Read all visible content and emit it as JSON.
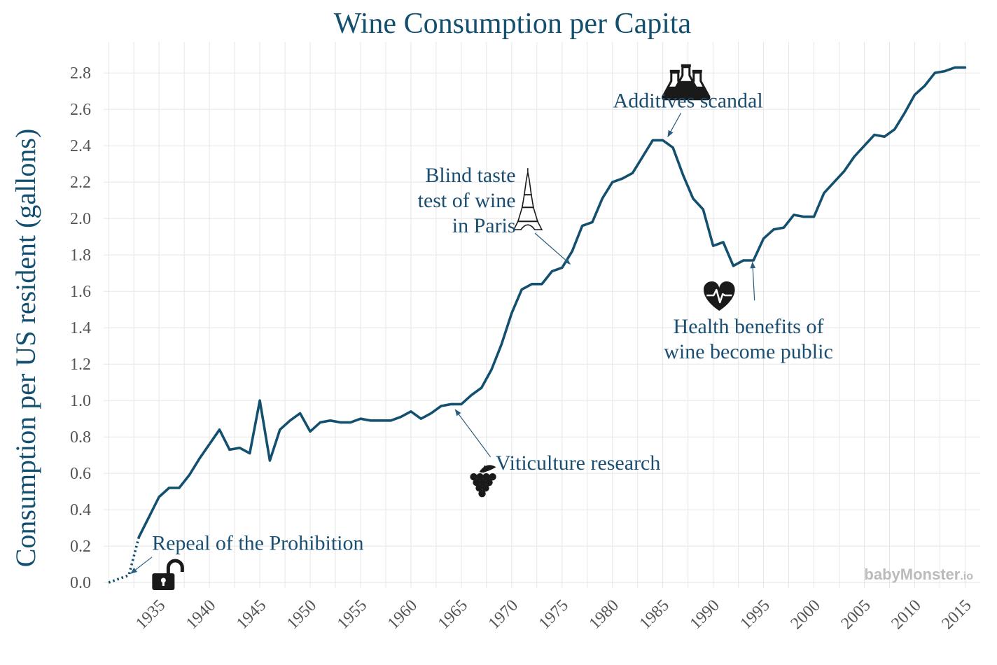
{
  "colors": {
    "line": "#13506f",
    "title": "#13506f",
    "annotation": "#1b4f72",
    "grid": "#e6e6e6",
    "ticks": "#555555",
    "watermark": "#bbbbbb",
    "icon": "#1a1a1a"
  },
  "watermark": {
    "brand": "babyMonster",
    "suffix": ".io"
  },
  "chart_data": {
    "type": "line",
    "title": "Wine Consumption per Capita",
    "xlabel": "",
    "ylabel": "Consumption per US resident (gallons)",
    "xlim": [
      1929.5,
      2016.5
    ],
    "ylim": [
      -0.03,
      2.97
    ],
    "grid": true,
    "legend": "none",
    "x_ticks": [
      1935,
      1940,
      1945,
      1950,
      1955,
      1960,
      1965,
      1970,
      1975,
      1980,
      1985,
      1990,
      1995,
      2000,
      2005,
      2010,
      2015
    ],
    "y_ticks": [
      0.0,
      0.2,
      0.4,
      0.6,
      0.8,
      1.0,
      1.2,
      1.4,
      1.6,
      1.8,
      2.0,
      2.2,
      2.4,
      2.6,
      2.8
    ],
    "series": [
      {
        "style": "dotted",
        "x": [
          1930,
          1931,
          1932,
          1933
        ],
        "y": [
          0.0,
          0.02,
          0.04,
          0.25
        ]
      },
      {
        "style": "solid",
        "x": [
          1933,
          1934,
          1935,
          1936,
          1937,
          1938,
          1939,
          1940,
          1941,
          1942,
          1943,
          1944,
          1945,
          1946,
          1947,
          1948,
          1949,
          1950,
          1951,
          1952,
          1953,
          1954,
          1955,
          1956,
          1957,
          1958,
          1959,
          1960,
          1961,
          1962,
          1963,
          1964,
          1965,
          1966,
          1967,
          1968,
          1969,
          1970,
          1971,
          1972,
          1973,
          1974,
          1975,
          1976,
          1977,
          1978,
          1979,
          1980,
          1981,
          1982,
          1983,
          1984,
          1985,
          1986,
          1987,
          1988,
          1989,
          1990,
          1991,
          1992,
          1993,
          1994,
          1995,
          1996,
          1997,
          1998,
          1999,
          2000,
          2001,
          2002,
          2003,
          2004,
          2005,
          2006,
          2007,
          2008,
          2009,
          2010,
          2011,
          2012,
          2013,
          2014,
          2015
        ],
        "y": [
          0.25,
          0.36,
          0.47,
          0.52,
          0.52,
          0.59,
          0.68,
          0.76,
          0.84,
          0.73,
          0.74,
          0.71,
          1.0,
          0.67,
          0.84,
          0.89,
          0.93,
          0.83,
          0.88,
          0.89,
          0.88,
          0.88,
          0.9,
          0.89,
          0.89,
          0.89,
          0.91,
          0.94,
          0.9,
          0.93,
          0.97,
          0.98,
          0.98,
          1.03,
          1.07,
          1.17,
          1.31,
          1.48,
          1.61,
          1.64,
          1.64,
          1.71,
          1.73,
          1.82,
          1.96,
          1.98,
          2.11,
          2.2,
          2.22,
          2.25,
          2.34,
          2.43,
          2.43,
          2.39,
          2.24,
          2.11,
          2.05,
          1.85,
          1.87,
          1.74,
          1.77,
          1.77,
          1.89,
          1.94,
          1.95,
          2.02,
          2.01,
          2.01,
          2.14,
          2.2,
          2.26,
          2.34,
          2.4,
          2.46,
          2.45,
          2.49,
          2.58,
          2.68,
          2.73,
          2.8,
          2.81,
          2.83,
          2.83
        ]
      }
    ],
    "annotations": [
      {
        "id": "prohibition",
        "lines": [
          "Repeal of the Prohibition"
        ],
        "anchor": "start",
        "text_x": 1934.3,
        "text_y": 0.18,
        "target_x": 1932.2,
        "target_y": 0.05,
        "arrow_from_x": 1934.3,
        "arrow_from_y": 0.14,
        "icon": "unlock-icon",
        "icon_x": 1935.5,
        "icon_y": 0.02
      },
      {
        "id": "viticulture",
        "lines": [
          "Viticulture research"
        ],
        "anchor": "start",
        "text_x": 1968.4,
        "text_y": 0.62,
        "target_x": 1964.4,
        "target_y": 0.95,
        "arrow_from_x": 1967.9,
        "arrow_from_y": 0.69,
        "icon": "grapes-icon",
        "icon_x": 1967.2,
        "icon_y": 0.55
      },
      {
        "id": "paris",
        "lines": [
          "Blind taste",
          "test of wine",
          "in Paris"
        ],
        "anchor": "end",
        "text_x": 1970.4,
        "text_y": 2.2,
        "target_x": 1975.8,
        "target_y": 1.75,
        "arrow_from_x": 1972.3,
        "arrow_from_y": 1.92,
        "icon": "eiffel-tower-icon",
        "icon_x": 1971.6,
        "icon_y": 2.1
      },
      {
        "id": "additives",
        "lines": [
          "Additives scandal"
        ],
        "anchor": "middle",
        "text_x": 1987.5,
        "text_y": 2.61,
        "target_x": 1985.5,
        "target_y": 2.45,
        "arrow_from_x": 1986.8,
        "arrow_from_y": 2.58,
        "icon": "flasks-icon",
        "icon_x": 1987.3,
        "icon_y": 2.74
      },
      {
        "id": "health",
        "lines": [
          "Health benefits of",
          "wine become public"
        ],
        "anchor": "middle",
        "text_x": 1993.5,
        "text_y": 1.37,
        "target_x": 1993.9,
        "target_y": 1.76,
        "arrow_from_x": 1994.1,
        "arrow_from_y": 1.55,
        "icon": "heart-pulse-icon",
        "icon_x": 1990.6,
        "icon_y": 1.57
      }
    ]
  }
}
